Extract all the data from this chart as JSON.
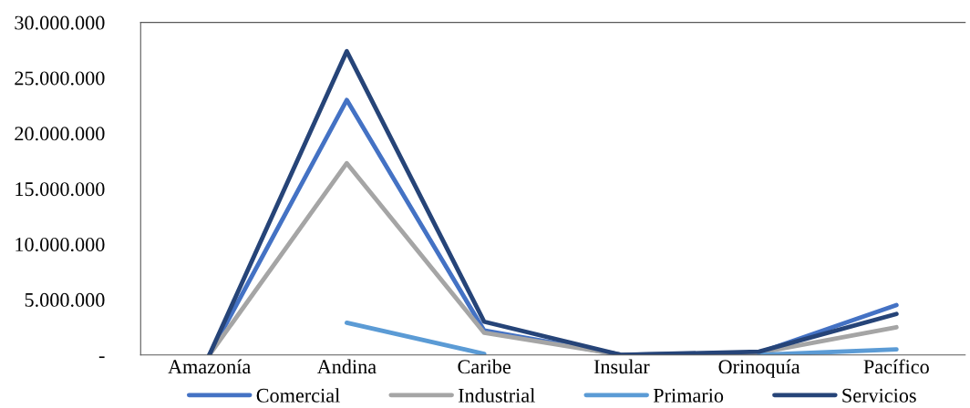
{
  "chart_data": {
    "type": "line",
    "categories": [
      "Amazonía",
      "Andina",
      "Caribe",
      "Insular",
      "Orinoquía",
      "Pacífico"
    ],
    "series": [
      {
        "name": "Comercial",
        "color": "#4472c4",
        "values": [
          0,
          23000000,
          2200000,
          0,
          200000,
          4500000
        ]
      },
      {
        "name": "Industrial",
        "color": "#a5a5a5",
        "values": [
          0,
          17300000,
          2000000,
          0,
          200000,
          2500000
        ]
      },
      {
        "name": "Primario",
        "color": "#5b9bd5",
        "values": [
          null,
          2900000,
          100000,
          null,
          0,
          500000
        ]
      },
      {
        "name": "Servicios",
        "color": "#264478",
        "values": [
          0,
          27400000,
          3000000,
          0,
          300000,
          3700000
        ]
      }
    ],
    "ylim": [
      0,
      30000000
    ],
    "yticks": [
      {
        "value": 0,
        "label": "-"
      },
      {
        "value": 5000000,
        "label": "5.000.000"
      },
      {
        "value": 10000000,
        "label": "10.000.000"
      },
      {
        "value": 15000000,
        "label": "15.000.000"
      },
      {
        "value": 20000000,
        "label": "20.000.000"
      },
      {
        "value": 25000000,
        "label": "25.000.000"
      },
      {
        "value": 30000000,
        "label": "30.000.000"
      }
    ],
    "legend": "bottom",
    "grid": false,
    "marker": "none",
    "line_style": "solid"
  }
}
